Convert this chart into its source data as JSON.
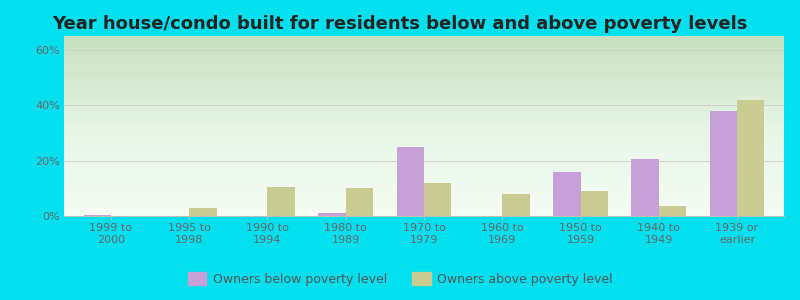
{
  "title": "Year house/condo built for residents below and above poverty levels",
  "categories": [
    "1999 to\n2000",
    "1995 to\n1998",
    "1990 to\n1994",
    "1980 to\n1989",
    "1970 to\n1979",
    "1960 to\n1969",
    "1950 to\n1959",
    "1940 to\n1949",
    "1939 or\nearlier"
  ],
  "below_poverty": [
    0.5,
    0.0,
    0.0,
    1.0,
    25.0,
    0.0,
    16.0,
    20.5,
    38.0
  ],
  "above_poverty": [
    0.0,
    3.0,
    10.5,
    10.0,
    12.0,
    8.0,
    9.0,
    3.5,
    42.0
  ],
  "below_color": "#c8a0d8",
  "above_color": "#c8cc90",
  "ylim": [
    0,
    65
  ],
  "yticks": [
    0,
    20,
    40,
    60
  ],
  "ytick_labels": [
    "0%",
    "20%",
    "40%",
    "60%"
  ],
  "outer_bg": "#00e0ee",
  "legend_below": "Owners below poverty level",
  "legend_above": "Owners above poverty level",
  "title_fontsize": 13,
  "tick_fontsize": 8
}
